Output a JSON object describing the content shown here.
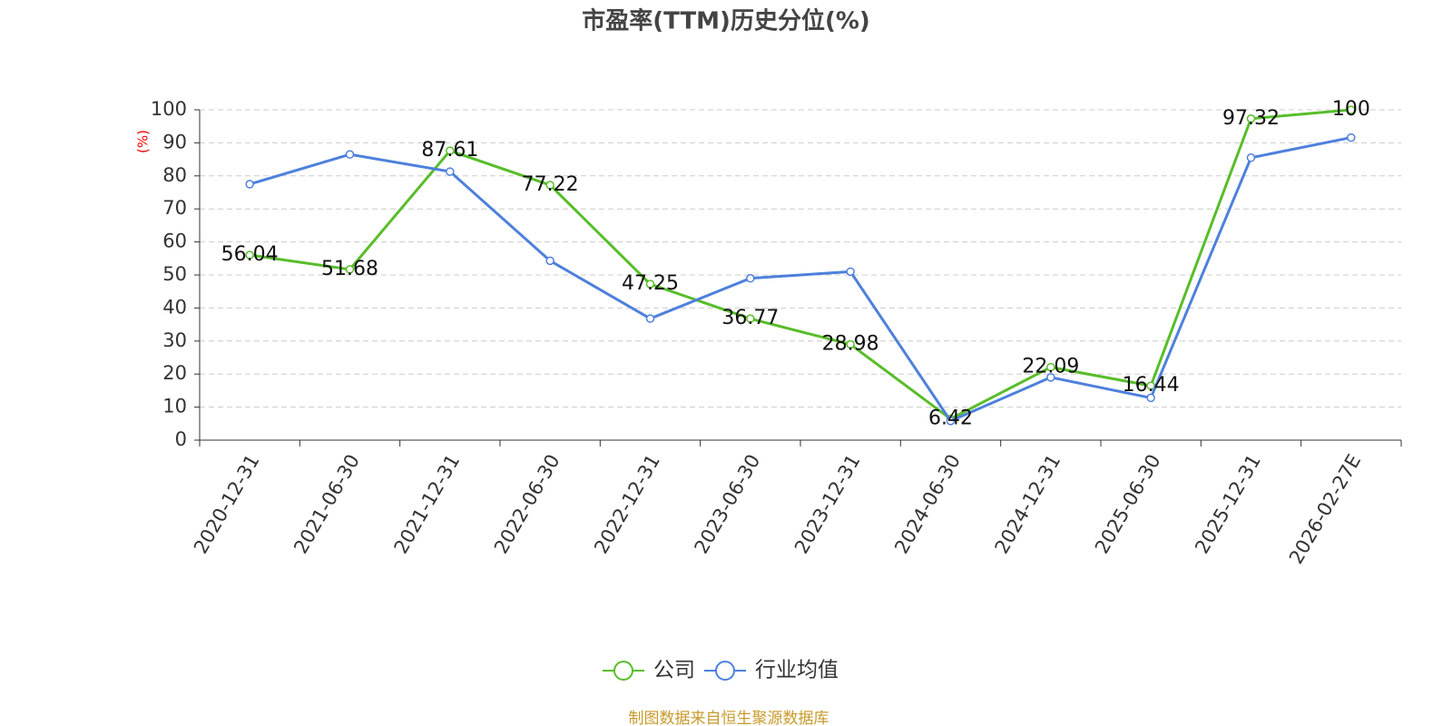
{
  "chart_data": {
    "type": "line",
    "title": "市盈率(TTM)历史分位(%)",
    "y_label": "(%)",
    "footer": "制图数据来自恒生聚源数据库",
    "categories": [
      "2020-12-31",
      "2021-06-30",
      "2021-12-31",
      "2022-06-30",
      "2022-12-31",
      "2023-06-30",
      "2023-12-31",
      "2024-06-30",
      "2024-12-31",
      "2025-06-30",
      "2025-12-31",
      "2026-02-27E"
    ],
    "series": [
      {
        "name": "公司",
        "color": "#58bd2a",
        "show_labels": true,
        "values": [
          56.04,
          51.68,
          87.61,
          77.22,
          47.25,
          36.77,
          28.98,
          6.42,
          22.09,
          16.44,
          97.32,
          100
        ]
      },
      {
        "name": "行业均值",
        "color": "#4e80dc",
        "show_labels": false,
        "values": [
          77.5,
          86.5,
          81.3,
          54.3,
          36.8,
          49,
          51,
          5.8,
          19,
          12.8,
          85.5,
          91.6
        ]
      }
    ],
    "ylim": [
      0,
      100
    ],
    "yticks": [
      0,
      10,
      20,
      30,
      40,
      50,
      60,
      70,
      80,
      90,
      100
    ],
    "grid": true,
    "legend": "bottom"
  }
}
